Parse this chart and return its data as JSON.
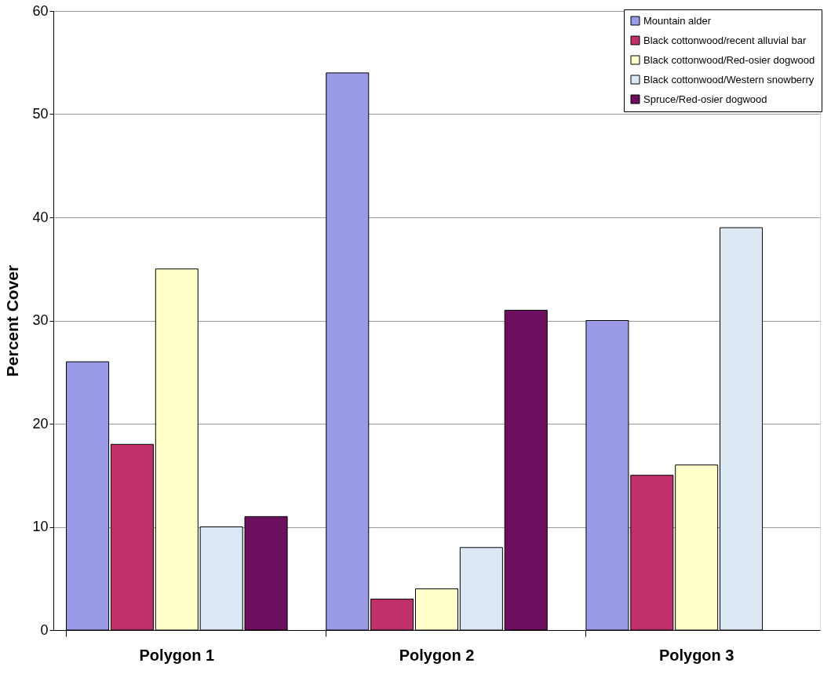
{
  "chart_data": {
    "type": "bar",
    "ylabel": "Percent Cover",
    "categories": [
      "Polygon 1",
      "Polygon 2",
      "Polygon 3"
    ],
    "series": [
      {
        "name": "Mountain alder",
        "color": "#9a9ae6",
        "values": [
          26,
          54,
          30
        ]
      },
      {
        "name": "Black cottonwood/recent alluvial bar",
        "color": "#c0306a",
        "values": [
          18,
          3,
          15
        ]
      },
      {
        "name": "Black cottonwood/Red-osier dogwood",
        "color": "#ffffcc",
        "values": [
          35,
          4,
          16
        ]
      },
      {
        "name": "Black cottonwood/Western snowberry",
        "color": "#dde8f5",
        "values": [
          10,
          8,
          39
        ]
      },
      {
        "name": "Spruce/Red-osier dogwood",
        "color": "#6b0f5e",
        "values": [
          11,
          31,
          null
        ]
      }
    ],
    "ylim": [
      0,
      60
    ],
    "yticks": [
      0,
      10,
      20,
      30,
      40,
      50,
      60
    ],
    "grid": "y",
    "legend": "top right"
  }
}
